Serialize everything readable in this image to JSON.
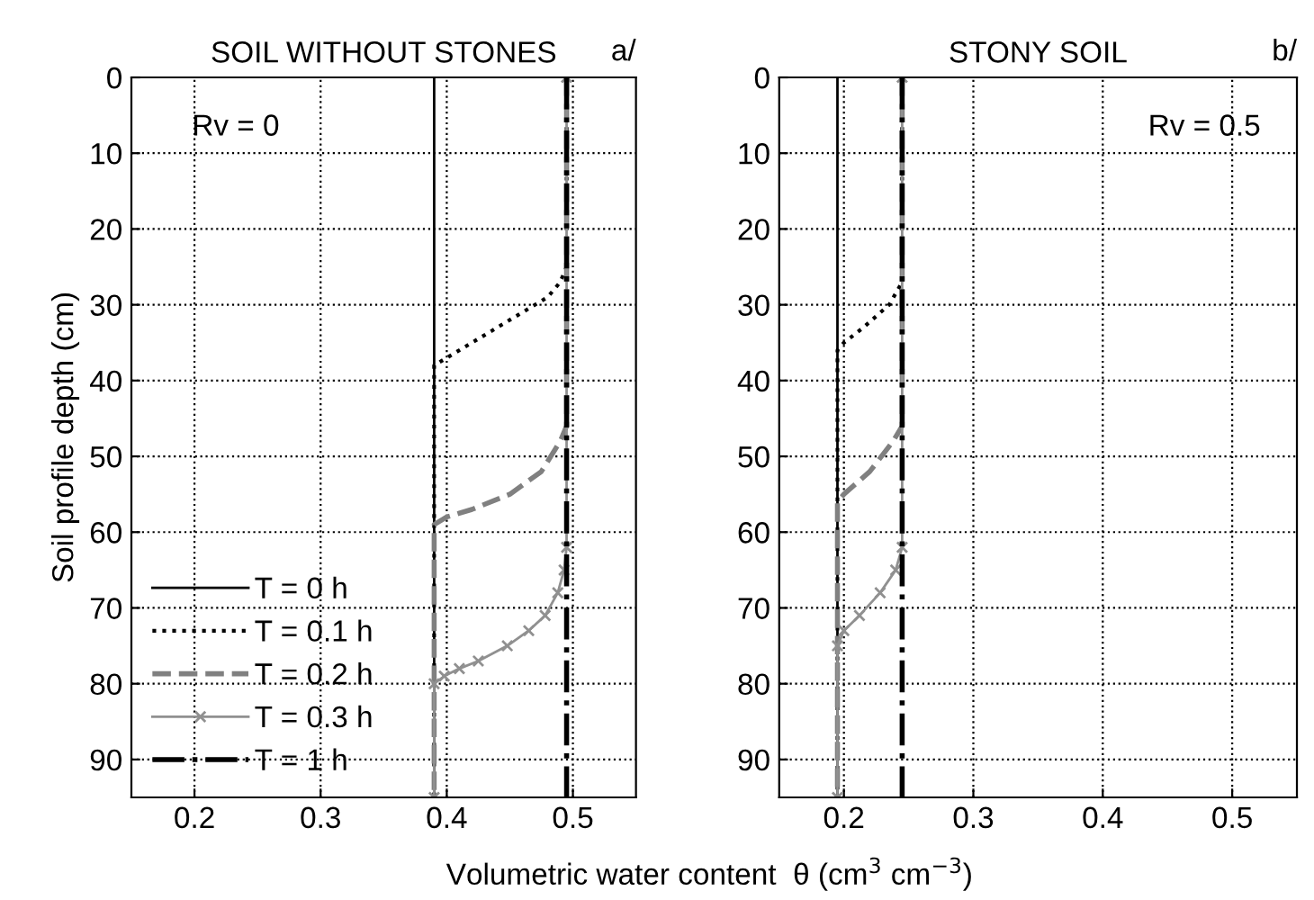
{
  "chart_data": [
    {
      "type": "line",
      "title": "SOIL WITHOUT STONES",
      "xlabel": "Volumetric water content  θ (cm$^{3}$ cm$^{−3}$)",
      "ylabel": "Soil profile depth (cm)",
      "annotations": [
        "a/",
        "Rv = 0"
      ],
      "xlim": [
        0.15,
        0.55
      ],
      "xticks": [
        0.2,
        0.3,
        0.4,
        0.5
      ],
      "ylim": [
        95,
        0
      ],
      "yticks": [
        0,
        10,
        20,
        30,
        40,
        50,
        60,
        70,
        80,
        90
      ],
      "grid": true,
      "legend": "bottom left",
      "series": [
        {
          "name": "T = 0 h",
          "color": "#000000",
          "line_style": "solid",
          "marker": "none",
          "x": [
            0.39,
            0.39
          ],
          "values": [
            0,
            95
          ]
        },
        {
          "name": "T = 0.1 h",
          "color": "#000000",
          "line_style": "dotted",
          "marker": "none",
          "x": [
            0.495,
            0.495,
            0.49,
            0.48,
            0.46,
            0.44,
            0.42,
            0.4,
            0.39,
            0.39
          ],
          "values": [
            0,
            25,
            27,
            29,
            31,
            33,
            35,
            37,
            38,
            95
          ]
        },
        {
          "name": "T = 0.2 h",
          "color": "#808080",
          "line_style": "dashed",
          "marker": "none",
          "x": [
            0.495,
            0.495,
            0.49,
            0.475,
            0.45,
            0.42,
            0.4,
            0.39,
            0.39
          ],
          "values": [
            0,
            46,
            48,
            52,
            55,
            57,
            58,
            59,
            95
          ]
        },
        {
          "name": "T = 0.3 h",
          "color": "#909090",
          "line_style": "solid",
          "marker": "cross",
          "x": [
            0.495,
            0.495,
            0.493,
            0.488,
            0.478,
            0.465,
            0.448,
            0.425,
            0.41,
            0.398,
            0.39,
            0.39
          ],
          "values": [
            0,
            62,
            65,
            68,
            71,
            73,
            75,
            77,
            78,
            79,
            80,
            95
          ]
        },
        {
          "name": "T = 1 h",
          "color": "#000000",
          "line_style": "dashdot",
          "marker": "none",
          "x": [
            0.495,
            0.495
          ],
          "values": [
            0,
            95
          ]
        }
      ]
    },
    {
      "type": "line",
      "title": "STONY SOIL",
      "annotations": [
        "b/",
        "Rv = 0.5"
      ],
      "xlim": [
        0.15,
        0.55
      ],
      "xticks": [
        0.2,
        0.3,
        0.4,
        0.5
      ],
      "ylim": [
        95,
        0
      ],
      "yticks": [
        0,
        10,
        20,
        30,
        40,
        50,
        60,
        70,
        80,
        90
      ],
      "grid": true,
      "series": [
        {
          "color": "#000000",
          "line_style": "solid",
          "marker": "none",
          "x": [
            0.195,
            0.195
          ],
          "values": [
            0,
            95
          ]
        },
        {
          "color": "#000000",
          "line_style": "dotted",
          "marker": "none",
          "x": [
            0.245,
            0.245,
            0.235,
            0.215,
            0.2,
            0.195,
            0.195
          ],
          "values": [
            0,
            27,
            30,
            33,
            35,
            36,
            95
          ]
        },
        {
          "color": "#808080",
          "line_style": "dashed",
          "marker": "none",
          "x": [
            0.245,
            0.245,
            0.238,
            0.22,
            0.2,
            0.195,
            0.195
          ],
          "values": [
            0,
            46,
            48,
            52,
            55,
            56,
            95
          ]
        },
        {
          "color": "#909090",
          "line_style": "solid",
          "marker": "cross",
          "x": [
            0.245,
            0.245,
            0.24,
            0.228,
            0.212,
            0.2,
            0.195,
            0.195
          ],
          "values": [
            0,
            62,
            65,
            68,
            71,
            73,
            75,
            95
          ]
        },
        {
          "color": "#000000",
          "line_style": "dashdot",
          "marker": "none",
          "x": [
            0.245,
            0.245
          ],
          "values": [
            0,
            95
          ]
        }
      ]
    }
  ]
}
